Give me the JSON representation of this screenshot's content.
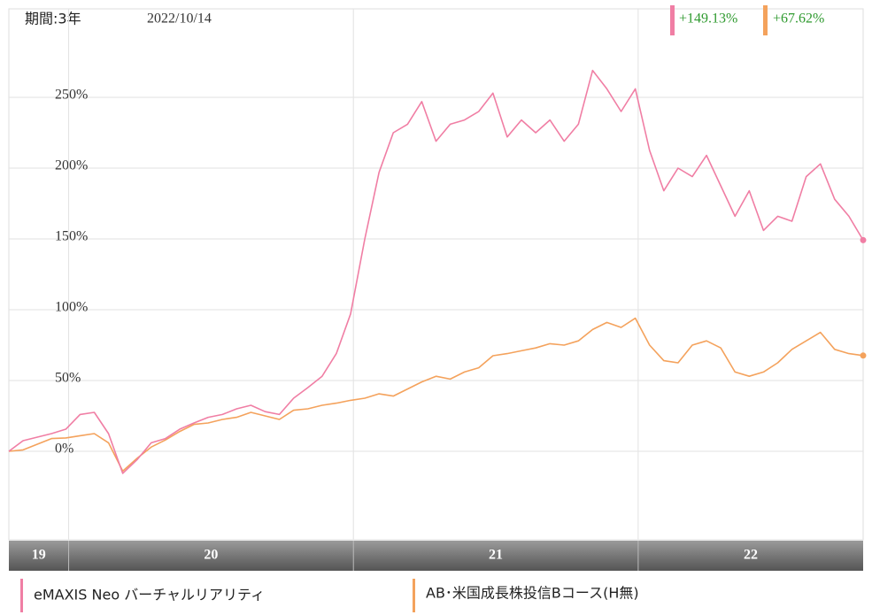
{
  "chart_data": {
    "type": "line",
    "period_label": "期間:3年",
    "date_label": "2022/10/14",
    "x": [
      2019.79,
      2019.84,
      2019.89,
      2019.94,
      2019.99,
      2020.04,
      2020.09,
      2020.14,
      2020.19,
      2020.24,
      2020.29,
      2020.34,
      2020.39,
      2020.44,
      2020.49,
      2020.54,
      2020.59,
      2020.64,
      2020.69,
      2020.74,
      2020.79,
      2020.84,
      2020.89,
      2020.94,
      2020.99,
      2021.04,
      2021.09,
      2021.14,
      2021.19,
      2021.24,
      2021.29,
      2021.34,
      2021.39,
      2021.44,
      2021.49,
      2021.54,
      2021.59,
      2021.64,
      2021.69,
      2021.74,
      2021.79,
      2021.84,
      2021.89,
      2021.94,
      2021.99,
      2022.04,
      2022.09,
      2022.14,
      2022.19,
      2022.24,
      2022.29,
      2022.34,
      2022.39,
      2022.44,
      2022.49,
      2022.54,
      2022.59,
      2022.64,
      2022.69,
      2022.74,
      2022.79
    ],
    "xlim": [
      2019.79,
      2022.79
    ],
    "xgrid": [
      2020,
      2021,
      2022
    ],
    "year_labels": [
      "19",
      "20",
      "21",
      "22"
    ],
    "ylim": [
      -62.5,
      312.5
    ],
    "yticks": [
      {
        "value": 0,
        "label": "0%"
      },
      {
        "value": 50,
        "label": "50%"
      },
      {
        "value": 100,
        "label": "100%"
      },
      {
        "value": 150,
        "label": "150%"
      },
      {
        "value": 200,
        "label": "200%"
      },
      {
        "value": 250,
        "label": "250%"
      }
    ],
    "grid": true,
    "series": [
      {
        "name": "eMAXIS Neo バーチャルリアリティ",
        "color": "#f07ea4",
        "end_label": "+149.13%",
        "values": [
          0,
          7.5,
          10,
          12.5,
          15.6,
          26,
          27.5,
          12.5,
          -15.6,
          -6,
          6,
          9,
          15.6,
          20,
          24,
          26,
          30,
          32.5,
          28,
          26,
          37.5,
          45,
          53,
          69,
          97,
          150,
          197,
          225,
          231,
          247,
          219,
          231,
          234,
          240,
          253,
          222,
          234,
          225,
          234,
          219,
          231,
          269,
          256,
          240,
          256,
          212.5,
          184,
          200,
          194,
          209,
          187.5,
          166,
          184,
          156,
          166,
          162.5,
          194,
          203,
          178,
          166,
          149.13
        ]
      },
      {
        "name": "AB･米国成長株投信Bコース(H無)",
        "color": "#f4a25c",
        "end_label": "+67.62%",
        "values": [
          0,
          1,
          5,
          9,
          9.4,
          11,
          12.5,
          6,
          -14,
          -5,
          3,
          8,
          14,
          19,
          20,
          22.5,
          24,
          27.5,
          25,
          22.5,
          29,
          30,
          32.5,
          34,
          36,
          37.5,
          40.6,
          39,
          44,
          49,
          53,
          51,
          56,
          59,
          67.5,
          69,
          71,
          73,
          76,
          75,
          78,
          86,
          91,
          87.5,
          94,
          75,
          64,
          62.5,
          75,
          78,
          73,
          56,
          53,
          56,
          62.5,
          72,
          78,
          84,
          72,
          69,
          67.62
        ]
      }
    ]
  }
}
